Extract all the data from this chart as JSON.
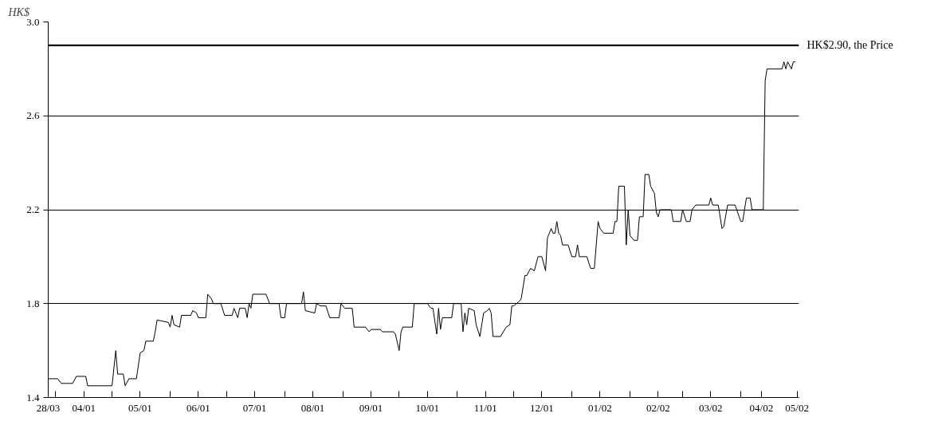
{
  "chart_data": {
    "type": "line",
    "ylabel": "HK$",
    "x": [
      "2001-03-28",
      "2001-04-02",
      "2001-04-04",
      "2001-04-10",
      "2001-04-12",
      "2001-04-17",
      "2001-04-18",
      "2001-05-01",
      "2001-05-03",
      "2001-05-04",
      "2001-05-07",
      "2001-05-08",
      "2001-05-10",
      "2001-05-14",
      "2001-05-16",
      "2001-05-18",
      "2001-05-19",
      "2001-05-23",
      "2001-05-24",
      "2001-05-25",
      "2001-05-31",
      "2001-06-01",
      "2001-06-02",
      "2001-06-03",
      "2001-06-06",
      "2001-06-07",
      "2001-06-12",
      "2001-06-13",
      "2001-06-15",
      "2001-06-16",
      "2001-06-20",
      "2001-06-21",
      "2001-06-23",
      "2001-06-24",
      "2001-06-28",
      "2001-06-30",
      "2001-07-04",
      "2001-07-05",
      "2001-07-07",
      "2001-07-08",
      "2001-07-11",
      "2001-07-12",
      "2001-07-13",
      "2001-07-14",
      "2001-07-15",
      "2001-07-22",
      "2001-07-24",
      "2001-07-29",
      "2001-07-30",
      "2001-08-01",
      "2001-08-02",
      "2001-08-10",
      "2001-08-11",
      "2001-08-12",
      "2001-08-17",
      "2001-08-18",
      "2001-08-20",
      "2001-08-23",
      "2001-08-25",
      "2001-08-30",
      "2001-08-31",
      "2001-09-02",
      "2001-09-06",
      "2001-09-07",
      "2001-09-13",
      "2001-09-15",
      "2001-09-16",
      "2001-09-21",
      "2001-09-22",
      "2001-09-28",
      "2001-09-29",
      "2001-10-01",
      "2001-10-02",
      "2001-10-03",
      "2001-10-08",
      "2001-10-09",
      "2001-10-16",
      "2001-10-18",
      "2001-10-19",
      "2001-10-21",
      "2001-10-22",
      "2001-10-23",
      "2001-10-24",
      "2001-10-29",
      "2001-10-30",
      "2001-11-03",
      "2001-11-04",
      "2001-11-05",
      "2001-11-06",
      "2001-11-07",
      "2001-11-10",
      "2001-11-11",
      "2001-11-13",
      "2001-11-15",
      "2001-11-17",
      "2001-11-18",
      "2001-11-19",
      "2001-11-20",
      "2001-11-24",
      "2001-11-27",
      "2001-11-29",
      "2001-11-30",
      "2001-12-01",
      "2001-12-04",
      "2001-12-05",
      "2001-12-07",
      "2001-12-08",
      "2001-12-10",
      "2001-12-12",
      "2001-12-14",
      "2001-12-16",
      "2001-12-18",
      "2001-12-19",
      "2001-12-21",
      "2001-12-22",
      "2001-12-23",
      "2001-12-24",
      "2001-12-25",
      "2001-12-26",
      "2001-12-27",
      "2001-12-30",
      "2002-01-01",
      "2002-01-03",
      "2002-01-04",
      "2002-01-05",
      "2002-01-09",
      "2002-01-11",
      "2002-01-13",
      "2002-01-15",
      "2002-01-16",
      "2002-01-18",
      "2002-01-23",
      "2002-01-24",
      "2002-01-25",
      "2002-01-26",
      "2002-01-29",
      "2002-01-30",
      "2002-01-31",
      "2002-02-01",
      "2002-02-03",
      "2002-02-05",
      "2002-02-06",
      "2002-02-08",
      "2002-02-09",
      "2002-02-11",
      "2002-02-12",
      "2002-02-14",
      "2002-02-15",
      "2002-02-16",
      "2002-02-17",
      "2002-02-23",
      "2002-02-24",
      "2002-02-28",
      "2002-03-01",
      "2002-03-03",
      "2002-03-05",
      "2002-03-06",
      "2002-03-08",
      "2002-03-15",
      "2002-03-16",
      "2002-03-17",
      "2002-03-20",
      "2002-03-22",
      "2002-03-23",
      "2002-03-25",
      "2002-03-29",
      "2002-04-01",
      "2002-04-02",
      "2002-04-04",
      "2002-04-06",
      "2002-04-07",
      "2002-04-13",
      "2002-04-14",
      "2002-04-15",
      "2002-04-23",
      "2002-04-24",
      "2002-04-25",
      "2002-04-26",
      "2002-04-28",
      "2002-04-29",
      "2002-04-30"
    ],
    "series": [
      {
        "color": "#000000",
        "values": [
          1.48,
          1.48,
          1.46,
          1.46,
          1.49,
          1.49,
          1.45,
          1.45,
          1.6,
          1.5,
          1.5,
          1.45,
          1.48,
          1.48,
          1.59,
          1.6,
          1.64,
          1.64,
          1.68,
          1.73,
          1.72,
          1.7,
          1.75,
          1.71,
          1.7,
          1.75,
          1.75,
          1.77,
          1.76,
          1.74,
          1.74,
          1.84,
          1.82,
          1.8,
          1.8,
          1.75,
          1.75,
          1.78,
          1.74,
          1.78,
          1.78,
          1.74,
          1.8,
          1.78,
          1.84,
          1.84,
          1.8,
          1.8,
          1.74,
          1.74,
          1.8,
          1.8,
          1.85,
          1.77,
          1.76,
          1.8,
          1.79,
          1.79,
          1.74,
          1.74,
          1.8,
          1.78,
          1.78,
          1.7,
          1.7,
          1.68,
          1.69,
          1.69,
          1.68,
          1.68,
          1.67,
          1.6,
          1.68,
          1.7,
          1.7,
          1.8,
          1.8,
          1.78,
          1.78,
          1.67,
          1.78,
          1.69,
          1.74,
          1.74,
          1.8,
          1.8,
          1.68,
          1.76,
          1.71,
          1.78,
          1.77,
          1.71,
          1.66,
          1.76,
          1.77,
          1.78,
          1.76,
          1.66,
          1.66,
          1.7,
          1.71,
          1.79,
          1.79,
          1.81,
          1.82,
          1.92,
          1.92,
          1.95,
          1.94,
          2.0,
          2.0,
          1.94,
          2.08,
          2.12,
          2.1,
          2.1,
          2.15,
          2.1,
          2.09,
          2.05,
          2.05,
          2.0,
          2.0,
          2.05,
          2.0,
          2.0,
          1.95,
          1.95,
          2.15,
          2.12,
          2.1,
          2.1,
          2.15,
          2.15,
          2.3,
          2.3,
          2.05,
          2.2,
          2.09,
          2.07,
          2.07,
          2.17,
          2.17,
          2.35,
          2.35,
          2.3,
          2.27,
          2.19,
          2.17,
          2.2,
          2.2,
          2.15,
          2.15,
          2.2,
          2.15,
          2.15,
          2.2,
          2.22,
          2.22,
          2.25,
          2.22,
          2.22,
          2.12,
          2.13,
          2.22,
          2.22,
          2.15,
          2.15,
          2.25,
          2.25,
          2.2,
          2.2,
          2.75,
          2.8,
          2.8,
          2.83,
          2.8,
          2.83,
          2.8,
          2.83,
          2.83
        ]
      }
    ],
    "xlim": [
      "2001-03-28",
      "2002-05-02"
    ],
    "xticks": [
      {
        "value": "2001-03-28",
        "label": "28/03"
      },
      {
        "value": "2001-04-16",
        "label": "04/01"
      },
      {
        "value": "2001-05-16",
        "label": "05/01"
      },
      {
        "value": "2001-06-16",
        "label": "06/01"
      },
      {
        "value": "2001-07-16",
        "label": "07/01"
      },
      {
        "value": "2001-08-16",
        "label": "08/01"
      },
      {
        "value": "2001-09-16",
        "label": "09/01"
      },
      {
        "value": "2001-10-16",
        "label": "10/01"
      },
      {
        "value": "2001-11-16",
        "label": "11/01"
      },
      {
        "value": "2001-12-16",
        "label": "12/01"
      },
      {
        "value": "2002-01-16",
        "label": "01/02"
      },
      {
        "value": "2002-02-16",
        "label": "02/02"
      },
      {
        "value": "2002-03-16",
        "label": "03/02"
      },
      {
        "value": "2002-04-12",
        "label": "04/02"
      },
      {
        "value": "2002-05-01",
        "label": "05/02"
      },
      {
        "value": "2001-04-01",
        "label": null
      },
      {
        "value": "2001-05-01",
        "label": null
      },
      {
        "value": "2001-06-01",
        "label": null
      },
      {
        "value": "2001-07-01",
        "label": null
      },
      {
        "value": "2001-08-01",
        "label": null
      },
      {
        "value": "2001-09-01",
        "label": null
      },
      {
        "value": "2001-10-01",
        "label": null
      },
      {
        "value": "2001-11-01",
        "label": null
      },
      {
        "value": "2001-12-01",
        "label": null
      },
      {
        "value": "2002-01-01",
        "label": null
      },
      {
        "value": "2002-02-01",
        "label": null
      },
      {
        "value": "2002-03-01",
        "label": null
      },
      {
        "value": "2002-04-01",
        "label": null
      }
    ],
    "ylim": [
      1.4,
      3.0
    ],
    "yticks": [
      1.4,
      1.8,
      2.2,
      2.6,
      {
        "value": 3.0,
        "label": "3.0"
      }
    ],
    "ref_lines": [
      {
        "axis": "y",
        "value": 2.9,
        "label": "HK$2.90, the Price",
        "color": "#000000"
      }
    ],
    "grid": "y",
    "line_style": "solid",
    "marker": "none"
  }
}
